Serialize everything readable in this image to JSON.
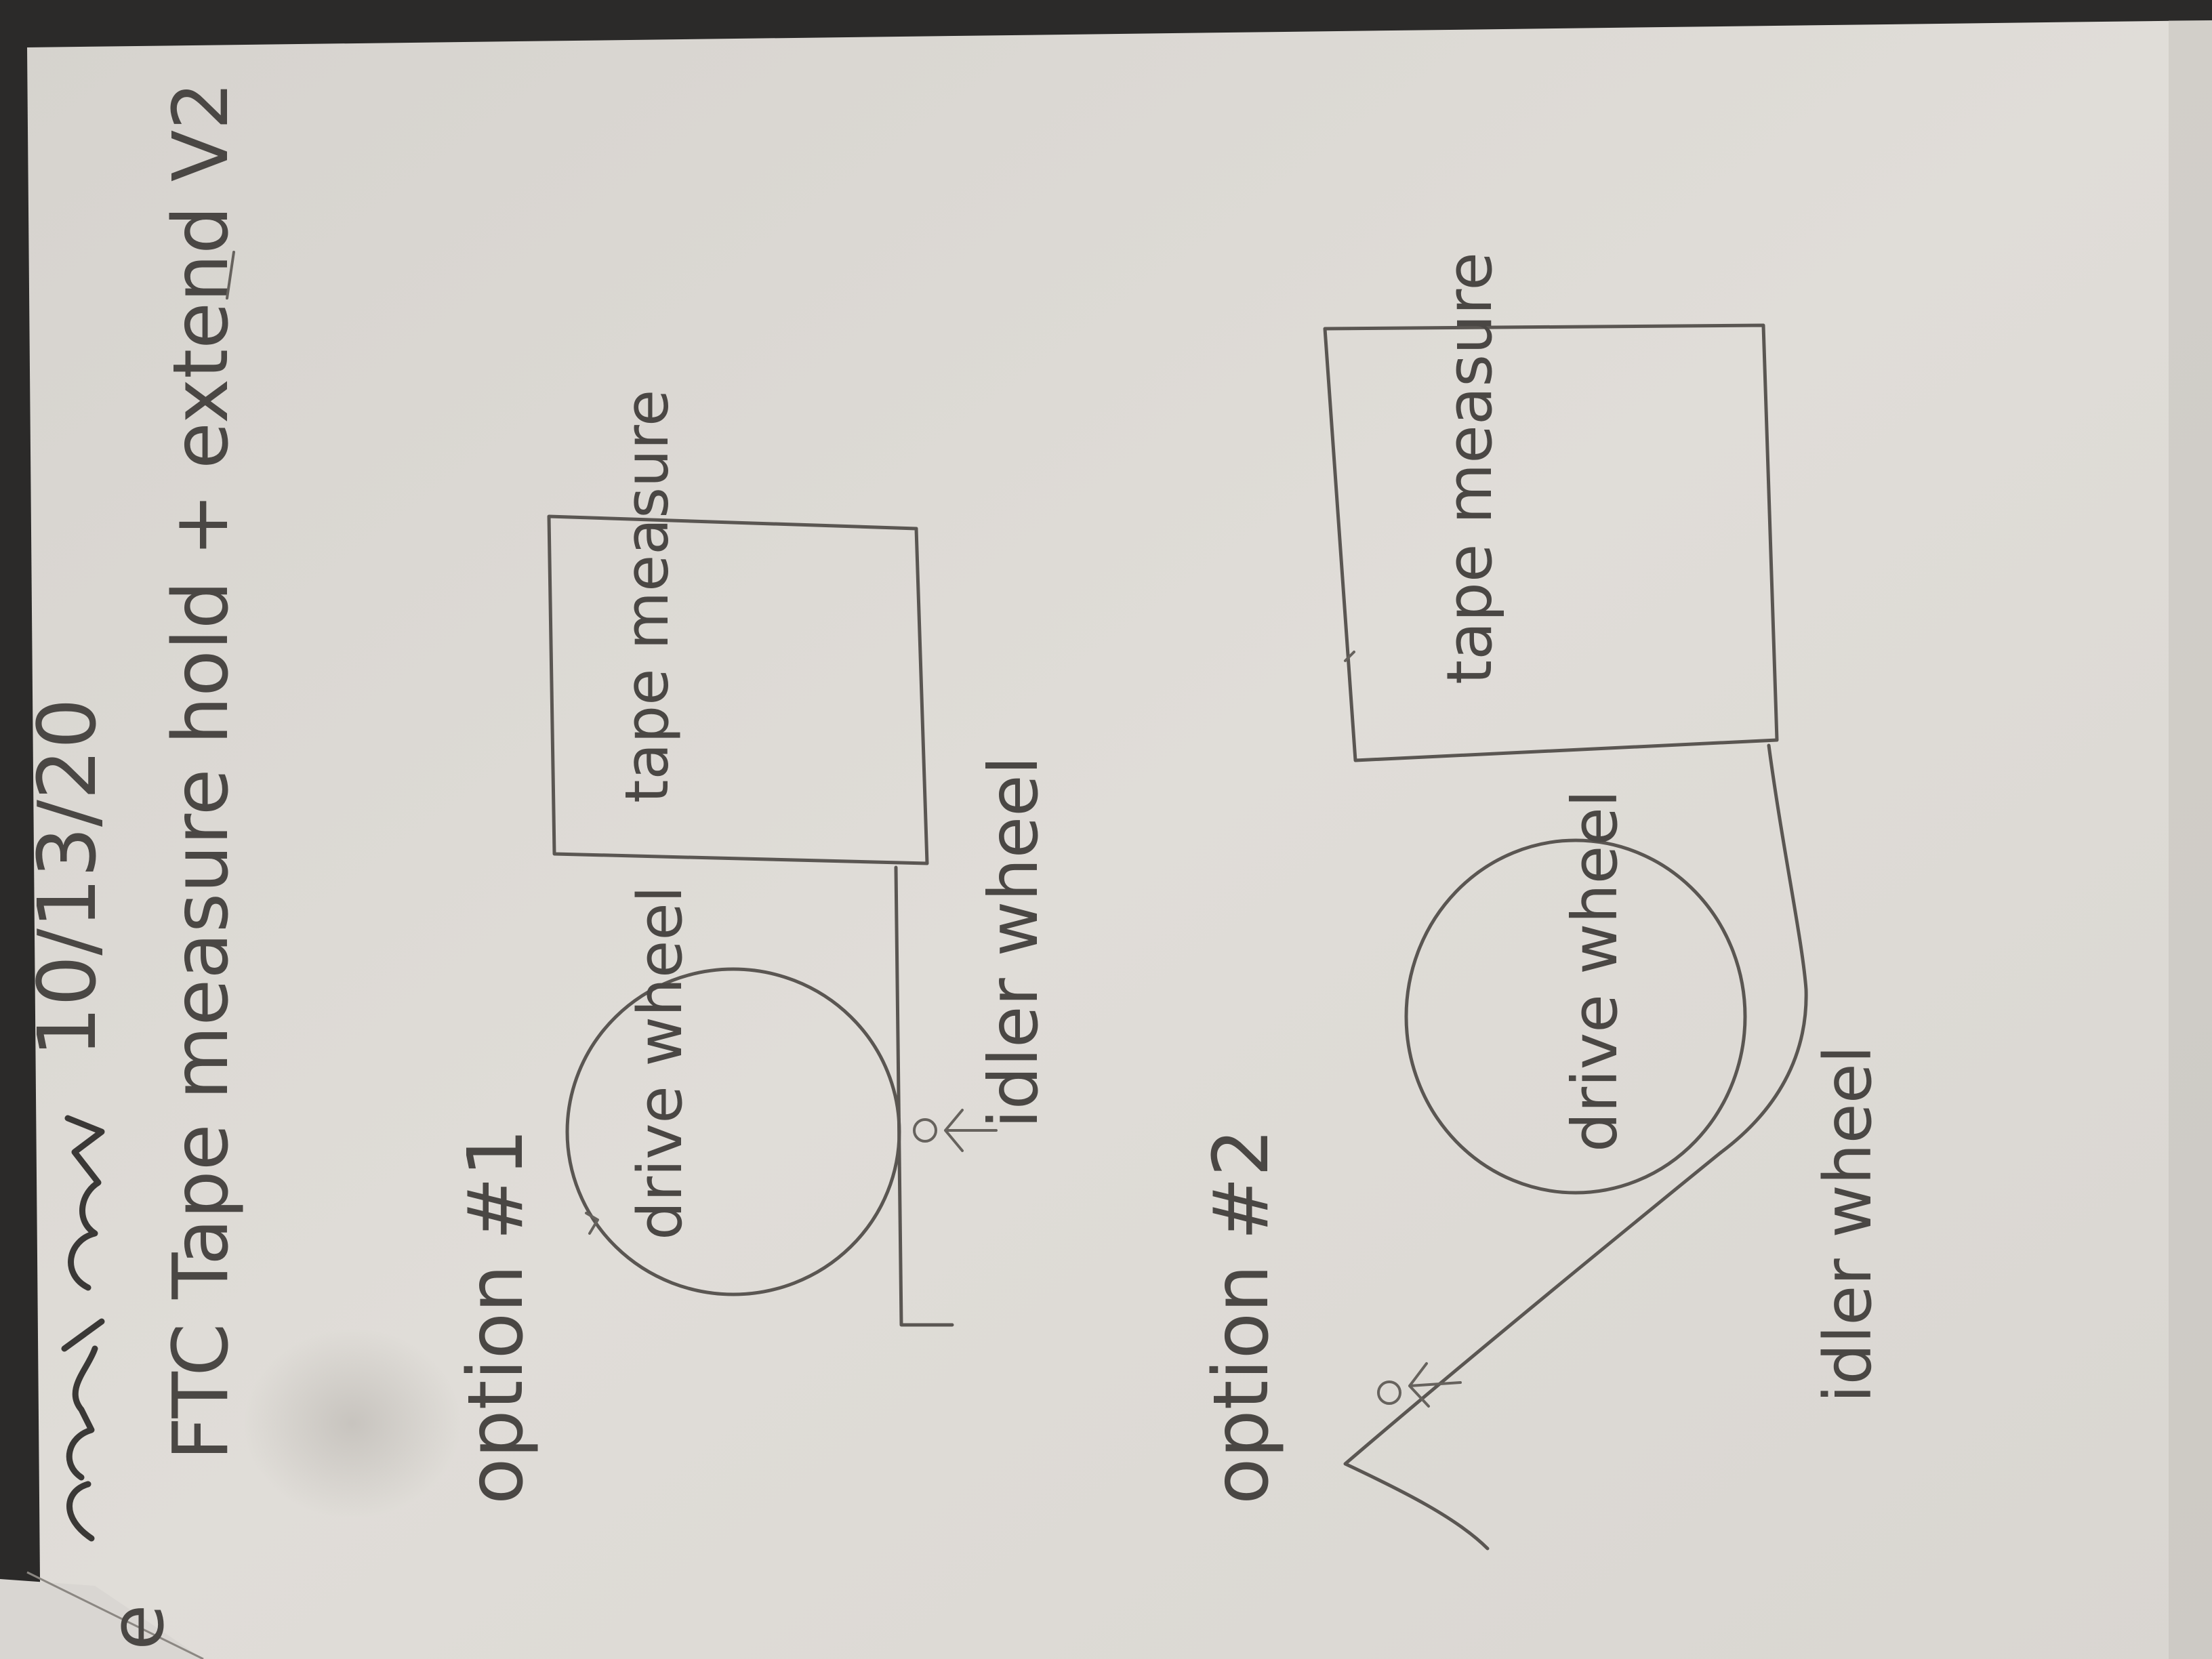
{
  "header": {
    "author_scribble": "signature",
    "date": "10/13/20",
    "title": "FTC Tape measure hold + extend V2"
  },
  "option1": {
    "label": "option #1",
    "tape_box_label": "tape measure",
    "drive_wheel_label": "drive wheel",
    "idler_label": "idler wheel"
  },
  "option2": {
    "label": "option #2",
    "tape_box_label": "tape measure",
    "drive_wheel_label": "drive wheel",
    "idler_label": "idler wheel"
  },
  "left_page_fragment": "e",
  "colors": {
    "paper": "#dddad5",
    "pencil": "#5a5652",
    "background": "#2b2a29"
  }
}
